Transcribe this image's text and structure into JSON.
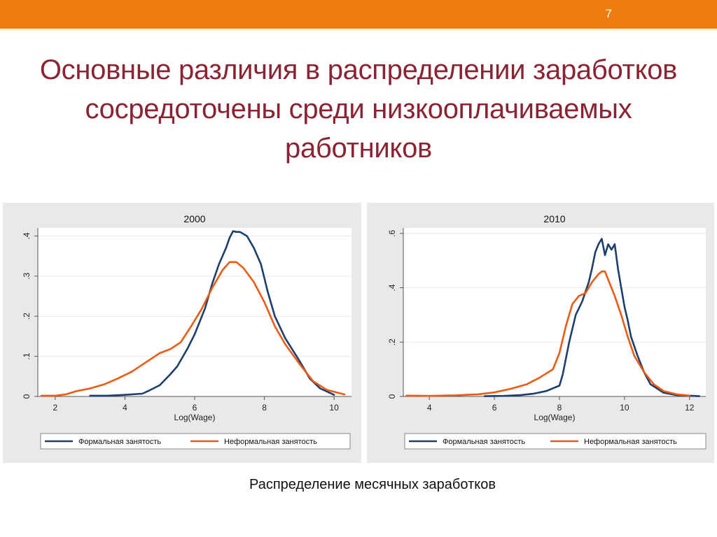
{
  "slide": {
    "number": "7",
    "title_lines": [
      "Основные различия в распределении заработков",
      "сосредоточены среди низкооплачиваемых",
      "работников"
    ],
    "caption": "Распределение месячных заработков",
    "accent_color": "#ee7d10",
    "title_color": "#8c2332"
  },
  "chart_data": [
    {
      "type": "line",
      "title": "2000",
      "xlabel": "Log(Wage)",
      "ylabel": "",
      "xlim": [
        1.5,
        10.5
      ],
      "ylim": [
        0,
        0.42
      ],
      "xticks": [
        2,
        4,
        6,
        8,
        10
      ],
      "yticks": [
        0,
        0.1,
        0.2,
        0.3,
        0.4
      ],
      "ytick_labels": [
        "0",
        ".1",
        ".2",
        ".3",
        ".4"
      ],
      "grid": true,
      "legend_position": "bottom",
      "series": [
        {
          "name": "Формальная занятость",
          "color": "#1c3f6e",
          "x": [
            3.0,
            3.5,
            4.0,
            4.5,
            4.7,
            5.0,
            5.3,
            5.5,
            5.8,
            6.0,
            6.3,
            6.5,
            6.7,
            6.9,
            7.0,
            7.1,
            7.2,
            7.3,
            7.5,
            7.7,
            7.9,
            8.1,
            8.3,
            8.6,
            9.0,
            9.3,
            9.6,
            10.0
          ],
          "values": [
            0.002,
            0.002,
            0.004,
            0.007,
            0.015,
            0.028,
            0.055,
            0.075,
            0.12,
            0.155,
            0.22,
            0.28,
            0.33,
            0.37,
            0.395,
            0.412,
            0.41,
            0.41,
            0.4,
            0.37,
            0.33,
            0.26,
            0.2,
            0.145,
            0.09,
            0.045,
            0.02,
            0.004
          ]
        },
        {
          "name": "Неформальная занятость",
          "color": "#ee5a12",
          "x": [
            1.6,
            2.0,
            2.3,
            2.6,
            3.0,
            3.4,
            3.8,
            4.2,
            4.6,
            5.0,
            5.3,
            5.6,
            5.9,
            6.2,
            6.5,
            6.8,
            7.0,
            7.2,
            7.4,
            7.7,
            8.0,
            8.3,
            8.6,
            9.0,
            9.4,
            9.8,
            10.3
          ],
          "values": [
            0.002,
            0.002,
            0.005,
            0.013,
            0.02,
            0.03,
            0.045,
            0.062,
            0.085,
            0.108,
            0.118,
            0.135,
            0.175,
            0.218,
            0.27,
            0.315,
            0.335,
            0.335,
            0.32,
            0.285,
            0.235,
            0.175,
            0.13,
            0.082,
            0.038,
            0.016,
            0.005
          ]
        }
      ]
    },
    {
      "type": "line",
      "title": "2010",
      "xlabel": "Log(Wage)",
      "ylabel": "",
      "xlim": [
        3.2,
        12.5
      ],
      "ylim": [
        0,
        0.62
      ],
      "xticks": [
        4,
        6,
        8,
        10,
        12
      ],
      "yticks": [
        0,
        0.2,
        0.4,
        0.6
      ],
      "ytick_labels": [
        "0",
        ".2",
        ".4",
        ".6"
      ],
      "grid": true,
      "legend_position": "bottom",
      "series": [
        {
          "name": "Формальная занятость",
          "color": "#1c3f6e",
          "x": [
            5.7,
            6.3,
            6.8,
            7.2,
            7.6,
            8.0,
            8.1,
            8.3,
            8.5,
            8.7,
            8.9,
            9.0,
            9.1,
            9.2,
            9.3,
            9.4,
            9.5,
            9.6,
            9.7,
            9.8,
            9.9,
            10.0,
            10.1,
            10.2,
            10.4,
            10.6,
            10.8,
            11.2,
            11.6,
            12.3
          ],
          "values": [
            0.001,
            0.002,
            0.005,
            0.01,
            0.02,
            0.04,
            0.08,
            0.2,
            0.3,
            0.35,
            0.42,
            0.47,
            0.53,
            0.56,
            0.58,
            0.52,
            0.56,
            0.54,
            0.56,
            0.47,
            0.4,
            0.33,
            0.28,
            0.22,
            0.15,
            0.09,
            0.045,
            0.014,
            0.005,
            0.001
          ]
        },
        {
          "name": "Неформальная занятость",
          "color": "#ee5a12",
          "x": [
            3.3,
            4.0,
            4.8,
            5.5,
            6.0,
            6.5,
            7.0,
            7.4,
            7.8,
            8.0,
            8.2,
            8.4,
            8.6,
            8.8,
            9.0,
            9.2,
            9.3,
            9.4,
            9.5,
            9.7,
            9.9,
            10.1,
            10.3,
            10.6,
            10.9,
            11.2,
            11.6,
            12.0
          ],
          "values": [
            0.003,
            0.002,
            0.004,
            0.008,
            0.015,
            0.028,
            0.045,
            0.07,
            0.1,
            0.16,
            0.26,
            0.34,
            0.37,
            0.38,
            0.42,
            0.45,
            0.46,
            0.46,
            0.43,
            0.37,
            0.3,
            0.22,
            0.15,
            0.09,
            0.045,
            0.02,
            0.008,
            0.003
          ]
        }
      ]
    }
  ]
}
